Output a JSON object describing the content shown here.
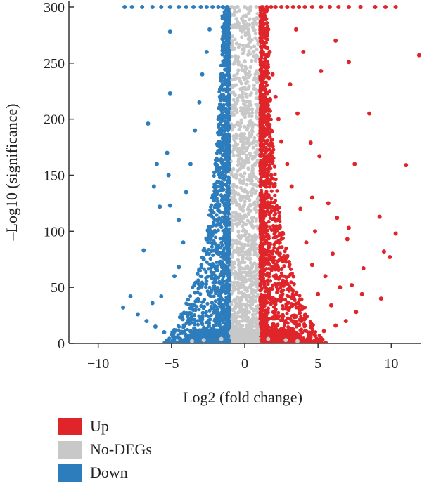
{
  "chart_data": {
    "type": "scatter",
    "xlabel": "Log2 (fold change)",
    "ylabel": "–Log10 (significance)",
    "xlim": [
      -12,
      12
    ],
    "ylim": [
      0,
      305
    ],
    "x_ticks": [
      -10,
      -5,
      0,
      5,
      10
    ],
    "x_tick_labels": [
      "−10",
      "−5",
      "0",
      "5",
      "10"
    ],
    "y_ticks": [
      0,
      50,
      100,
      150,
      200,
      250,
      300
    ],
    "y_tick_labels": [
      "0",
      "50",
      "100",
      "150",
      "200",
      "250",
      "300"
    ],
    "legend_position": "bottom-left",
    "series": [
      {
        "name": "Up",
        "color": "#e0252a",
        "points": [
          [
            1.2,
            300
          ],
          [
            1.5,
            300
          ],
          [
            1.8,
            300
          ],
          [
            2.1,
            300
          ],
          [
            2.5,
            300
          ],
          [
            2.9,
            300
          ],
          [
            3.3,
            300
          ],
          [
            3.7,
            300
          ],
          [
            4.1,
            300
          ],
          [
            4.6,
            300
          ],
          [
            5.2,
            300
          ],
          [
            5.8,
            300
          ],
          [
            6.4,
            300
          ],
          [
            7.1,
            300
          ],
          [
            7.9,
            300
          ],
          [
            8.9,
            300
          ],
          [
            9.6,
            300
          ],
          [
            10.3,
            300
          ],
          [
            11.9,
            257
          ],
          [
            7.1,
            251
          ],
          [
            6.2,
            270
          ],
          [
            5.2,
            243
          ],
          [
            4.0,
            260
          ],
          [
            3.5,
            280
          ],
          [
            3.1,
            231
          ],
          [
            3.6,
            205
          ],
          [
            4.5,
            179
          ],
          [
            5.1,
            167
          ],
          [
            7.5,
            160
          ],
          [
            11.0,
            159
          ],
          [
            8.5,
            205
          ],
          [
            4.6,
            130
          ],
          [
            5.7,
            125
          ],
          [
            6.3,
            112
          ],
          [
            7.1,
            103
          ],
          [
            9.2,
            113
          ],
          [
            10.3,
            98
          ],
          [
            9.5,
            82
          ],
          [
            9.9,
            77
          ],
          [
            8.1,
            67
          ],
          [
            7.0,
            93
          ],
          [
            6.0,
            80
          ],
          [
            5.5,
            60
          ],
          [
            6.5,
            50
          ],
          [
            7.3,
            52
          ],
          [
            8.0,
            44
          ],
          [
            9.3,
            40
          ],
          [
            7.6,
            28
          ],
          [
            6.9,
            20
          ],
          [
            6.2,
            16
          ],
          [
            5.4,
            11
          ],
          [
            4.8,
            7
          ],
          [
            4.3,
            4
          ],
          [
            5.9,
            34
          ],
          [
            5.0,
            44
          ],
          [
            4.6,
            70
          ],
          [
            4.2,
            90
          ],
          [
            4.8,
            100
          ],
          [
            3.8,
            120
          ],
          [
            3.2,
            140
          ],
          [
            2.9,
            160
          ],
          [
            2.5,
            180
          ],
          [
            2.3,
            200
          ],
          [
            2.1,
            220
          ],
          [
            1.9,
            240
          ],
          [
            1.7,
            260
          ],
          [
            1.6,
            280
          ],
          [
            2.2,
            110
          ],
          [
            2.4,
            80
          ],
          [
            2.7,
            55
          ],
          [
            3.0,
            30
          ],
          [
            3.4,
            18
          ],
          [
            1.8,
            150
          ],
          [
            2.0,
            60
          ]
        ]
      },
      {
        "name": "No-DEGs",
        "color": "#c8c8c8",
        "points": [
          [
            -0.9,
            300
          ],
          [
            -0.5,
            300
          ],
          [
            0.0,
            300
          ],
          [
            0.4,
            300
          ],
          [
            0.8,
            300
          ],
          [
            -0.7,
            250
          ],
          [
            0.6,
            260
          ],
          [
            -0.3,
            220
          ],
          [
            0.2,
            180
          ],
          [
            -0.6,
            150
          ],
          [
            0.7,
            120
          ],
          [
            -0.4,
            90
          ],
          [
            0.5,
            60
          ],
          [
            -0.8,
            30
          ],
          [
            0.3,
            20
          ],
          [
            -0.2,
            10
          ],
          [
            0.9,
            8
          ],
          [
            1.6,
            4
          ],
          [
            2.8,
            3
          ],
          [
            3.6,
            2
          ],
          [
            -1.6,
            4
          ],
          [
            -2.8,
            3
          ],
          [
            -3.6,
            2
          ],
          [
            0.0,
            5
          ],
          [
            -0.1,
            130
          ],
          [
            0.1,
            240
          ]
        ]
      },
      {
        "name": "Down",
        "color": "#2d7dbd",
        "points": [
          [
            -1.2,
            300
          ],
          [
            -1.5,
            300
          ],
          [
            -1.8,
            300
          ],
          [
            -2.2,
            300
          ],
          [
            -2.6,
            300
          ],
          [
            -3.0,
            300
          ],
          [
            -3.5,
            300
          ],
          [
            -4.0,
            300
          ],
          [
            -4.5,
            300
          ],
          [
            -5.1,
            300
          ],
          [
            -5.7,
            300
          ],
          [
            -6.3,
            300
          ],
          [
            -7.0,
            300
          ],
          [
            -7.7,
            300
          ],
          [
            -8.2,
            300
          ],
          [
            -5.1,
            278
          ],
          [
            -5.1,
            223
          ],
          [
            -6.6,
            196
          ],
          [
            -5.3,
            170
          ],
          [
            -6.0,
            160
          ],
          [
            -5.2,
            150
          ],
          [
            -6.2,
            140
          ],
          [
            -5.8,
            122
          ],
          [
            -5.1,
            123
          ],
          [
            -6.9,
            83
          ],
          [
            -7.8,
            42
          ],
          [
            -8.3,
            32
          ],
          [
            -7.3,
            26
          ],
          [
            -6.7,
            20
          ],
          [
            -6.1,
            15
          ],
          [
            -5.5,
            10
          ],
          [
            -4.9,
            6
          ],
          [
            -4.4,
            4
          ],
          [
            -6.3,
            36
          ],
          [
            -5.7,
            42
          ],
          [
            -4.8,
            60
          ],
          [
            -4.5,
            68
          ],
          [
            -4.2,
            90
          ],
          [
            -4.5,
            110
          ],
          [
            -4.0,
            135
          ],
          [
            -3.7,
            160
          ],
          [
            -3.4,
            190
          ],
          [
            -3.1,
            215
          ],
          [
            -2.9,
            240
          ],
          [
            -2.6,
            260
          ],
          [
            -2.4,
            280
          ],
          [
            -2.2,
            130
          ],
          [
            -2.5,
            100
          ],
          [
            -2.8,
            75
          ],
          [
            -3.1,
            50
          ],
          [
            -3.5,
            30
          ],
          [
            -1.8,
            200
          ],
          [
            -2.0,
            160
          ],
          [
            -1.6,
            240
          ],
          [
            -1.9,
            110
          ],
          [
            -2.3,
            60
          ]
        ]
      }
    ]
  }
}
